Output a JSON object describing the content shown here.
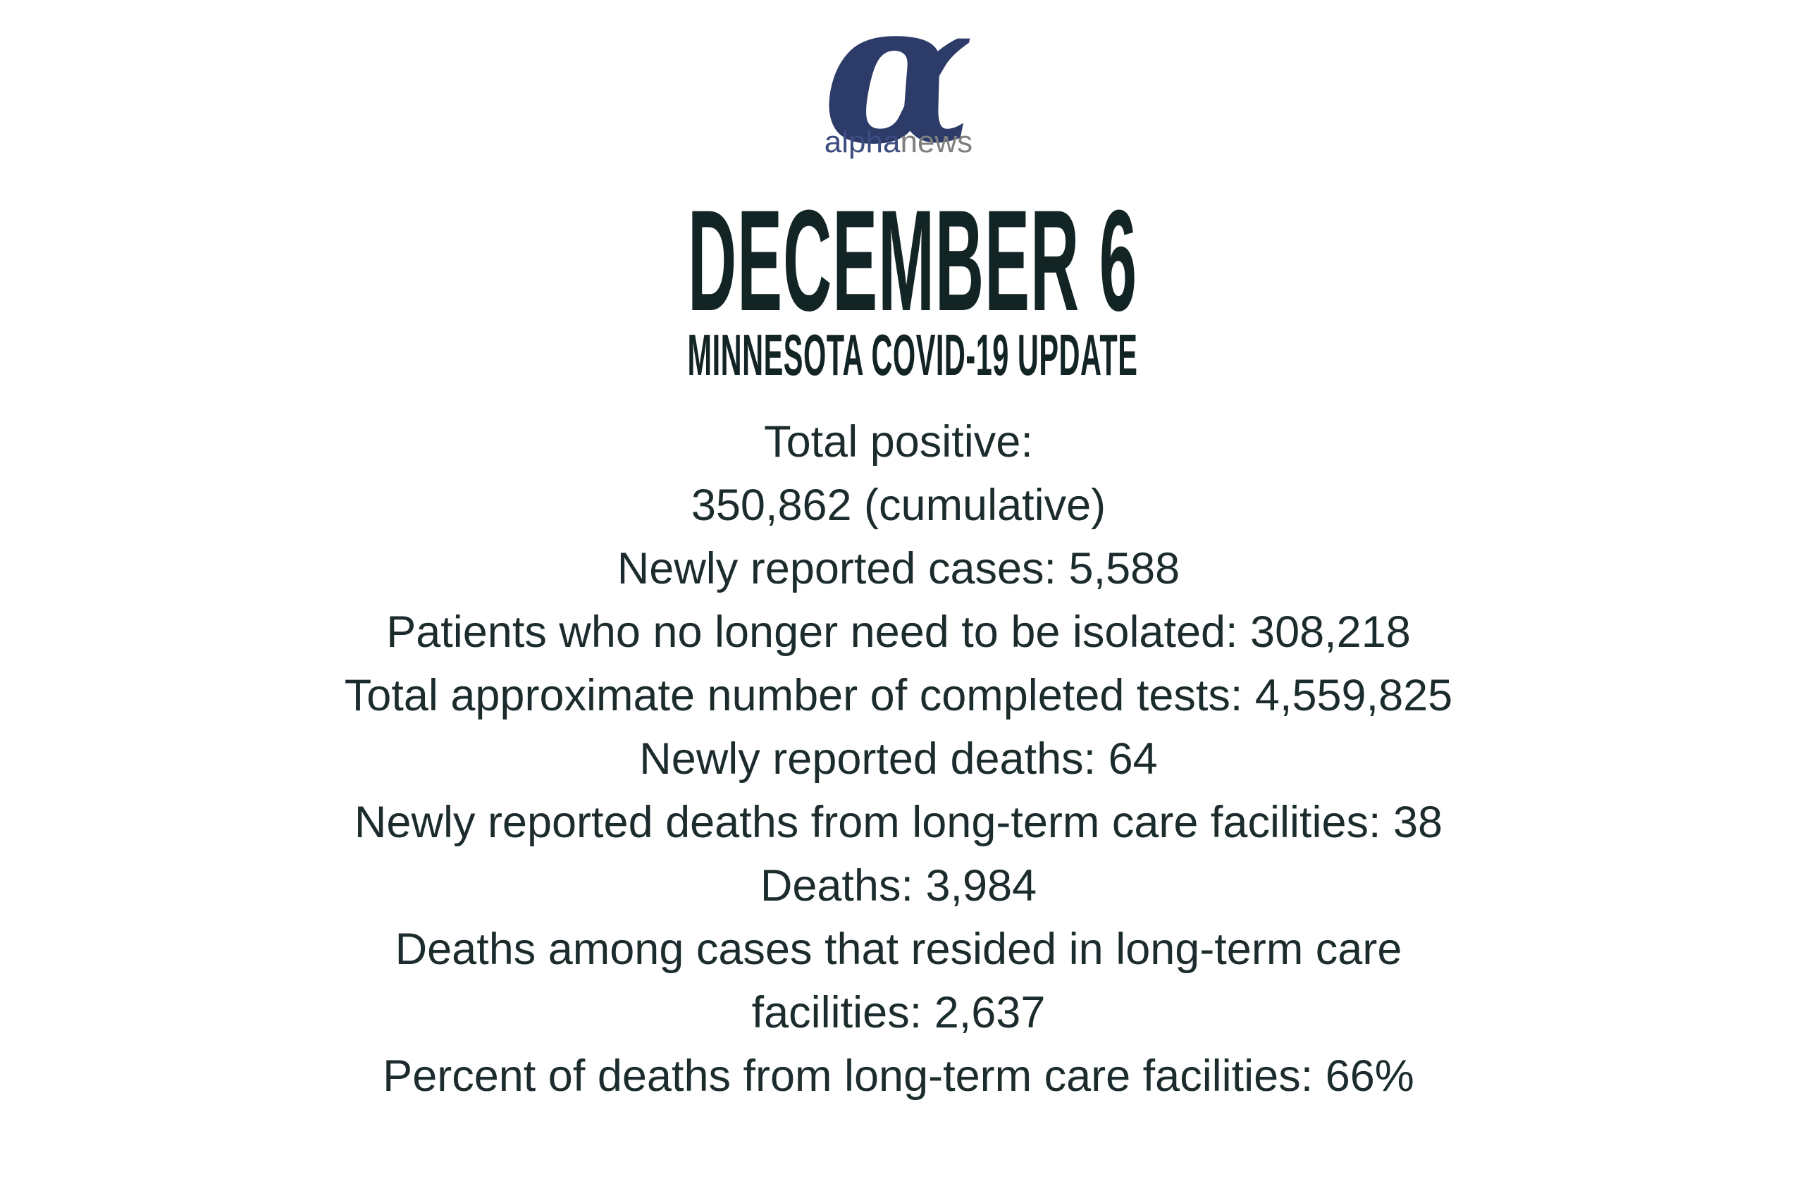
{
  "page": {
    "background_color": "#ffffff",
    "title_color": "#132425",
    "body_color": "#1c2c2d"
  },
  "logo": {
    "alpha_symbol": "α",
    "alpha_symbol_color": "#2d3b69",
    "wordmark_alpha": "alpha",
    "wordmark_alpha_color": "#3c4c80",
    "wordmark_news": "news",
    "wordmark_news_color": "#7f7f7f"
  },
  "header": {
    "title": "DECEMBER 6",
    "subtitle": "MINNESOTA COVID-19 UPDATE"
  },
  "stats": {
    "lines": [
      "Total positive:",
      "350,862 (cumulative)",
      "Newly reported cases: 5,588",
      "Patients who no longer need to be isolated: 308,218",
      "Total approximate number of completed tests: 4,559,825",
      "Newly reported deaths: 64",
      "Newly reported deaths from long-term care facilities: 38",
      "Deaths: 3,984",
      "Deaths among cases that resided in long-term care",
      "facilities: 2,637",
      "Percent of deaths from long-term care facilities: 66%"
    ]
  }
}
